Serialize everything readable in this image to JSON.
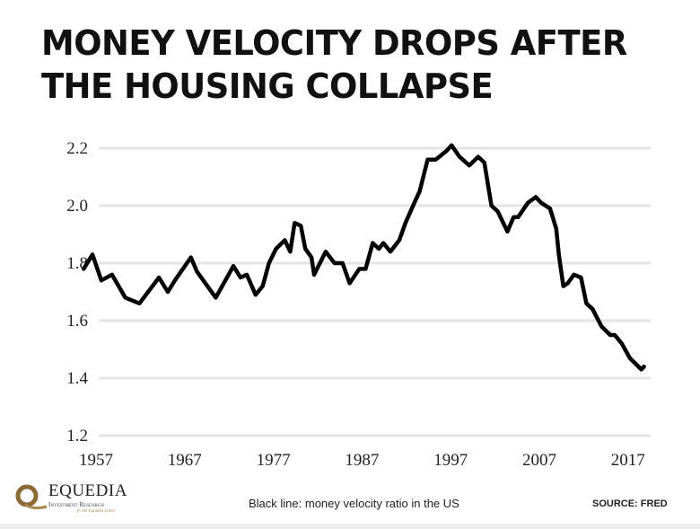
{
  "title": "MONEY VELOCITY DROPS AFTER THE HOUSING COLLAPSE",
  "footer": {
    "logo_name": "EQUEDIA",
    "logo_sub": "Investment Research",
    "logo_tag": "ft. the Equedia Letter",
    "caption": "Black line: money velocity ratio in the US",
    "source": "SOURCE:  FRED"
  },
  "chart_data": {
    "type": "line",
    "title": "MONEY VELOCITY DROPS AFTER THE HOUSING COLLAPSE",
    "xlabel": "",
    "ylabel": "",
    "xlim": [
      1955.5,
      2019
    ],
    "ylim": [
      1.2,
      2.2
    ],
    "grid": "horizontal",
    "x_ticks": [
      "1957",
      "1967",
      "1977",
      "1987",
      "1997",
      "2007",
      "2017"
    ],
    "y_ticks": [
      "1.2",
      "1.4",
      "1.6",
      "1.8",
      "2.0",
      "2.2"
    ],
    "line_color": "#000000",
    "x": [
      1955.6,
      1956.6,
      1957.6,
      1958.8,
      1960.3,
      1961.9,
      1964.1,
      1965.1,
      1965.9,
      1967.7,
      1968.4,
      1969.8,
      1970.5,
      1972.5,
      1973.3,
      1974.0,
      1975.0,
      1975.8,
      1976.5,
      1977.3,
      1978.3,
      1978.9,
      1979.4,
      1980.1,
      1980.6,
      1981.3,
      1981.6,
      1982.9,
      1983.9,
      1984.8,
      1985.6,
      1986.7,
      1987.4,
      1988.2,
      1988.9,
      1989.4,
      1990.2,
      1991.2,
      1991.9,
      1992.9,
      1993.5,
      1994.4,
      1995.3,
      1996.5,
      1997.1,
      1998.0,
      1999.1,
      2000.1,
      2000.8,
      2001.6,
      2002.3,
      2003.4,
      2004.1,
      2004.6,
      2005.7,
      2006.6,
      2007.2,
      2008.2,
      2008.9,
      2009.2,
      2009.7,
      2010.2,
      2010.9,
      2011.7,
      2012.3,
      2013.0,
      2014.0,
      2015.0,
      2015.5,
      2016.3,
      2017.2,
      2018.5,
      2018.8
    ],
    "y": [
      1.78,
      1.83,
      1.74,
      1.76,
      1.68,
      1.66,
      1.75,
      1.7,
      1.74,
      1.82,
      1.77,
      1.71,
      1.68,
      1.79,
      1.75,
      1.76,
      1.69,
      1.72,
      1.8,
      1.85,
      1.88,
      1.84,
      1.94,
      1.93,
      1.85,
      1.82,
      1.76,
      1.84,
      1.8,
      1.8,
      1.73,
      1.78,
      1.78,
      1.87,
      1.85,
      1.87,
      1.84,
      1.88,
      1.94,
      2.01,
      2.05,
      2.16,
      2.16,
      2.19,
      2.21,
      2.17,
      2.14,
      2.17,
      2.15,
      2.0,
      1.98,
      1.91,
      1.96,
      1.96,
      2.01,
      2.03,
      2.01,
      1.99,
      1.92,
      1.83,
      1.72,
      1.73,
      1.76,
      1.75,
      1.66,
      1.64,
      1.58,
      1.55,
      1.55,
      1.52,
      1.47,
      1.43,
      1.44
    ]
  }
}
